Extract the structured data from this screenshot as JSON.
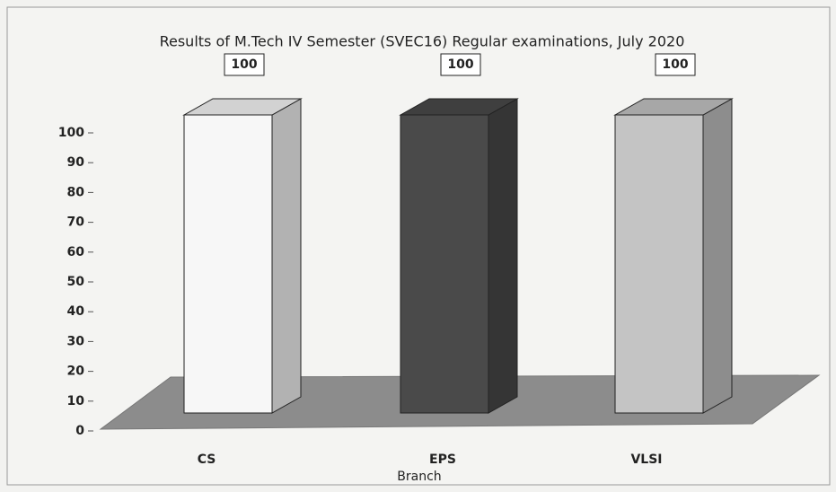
{
  "chart_data": {
    "type": "bar",
    "title": "Results of M.Tech IV Semester (SVEC16) Regular examinations, July 2020",
    "x_label": "Branch",
    "categories": [
      "CS",
      "EPS",
      "VLSI"
    ],
    "values": [
      100,
      100,
      100
    ],
    "colors": [
      "#f7f7f7",
      "#4a4a4a",
      "#c4c4c4"
    ],
    "ylim": [
      0,
      100
    ],
    "yticks": [
      0,
      10,
      20,
      30,
      40,
      50,
      60,
      70,
      80,
      90,
      100
    ],
    "grid": false
  }
}
